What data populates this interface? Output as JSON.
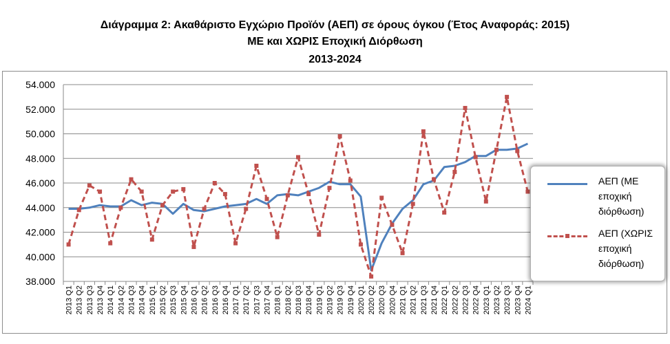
{
  "title_lines": [
    "Διάγραμμα 2: Ακαθάριστο Εγχώριο Προϊόν (ΑΕΠ) σε όρους όγκου (Έτος Αναφοράς: 2015)",
    "ΜΕ και ΧΩΡΙΣ Εποχική Διόρθωση",
    "2013-2024"
  ],
  "chart_data": {
    "type": "line",
    "title": "Διάγραμμα 2: Ακαθάριστο Εγχώριο Προϊόν (ΑΕΠ) σε όρους όγκου (Έτος Αναφοράς: 2015) ΜΕ και ΧΩΡΙΣ Εποχική Διόρθωση 2013-2024",
    "xlabel": "",
    "ylabel": "",
    "ylim": [
      38000,
      54000
    ],
    "y_ticks": [
      38000,
      40000,
      42000,
      44000,
      46000,
      48000,
      50000,
      52000,
      54000
    ],
    "y_tick_labels": [
      "38.000",
      "40.000",
      "42.000",
      "44.000",
      "46.000",
      "48.000",
      "50.000",
      "52.000",
      "54.000"
    ],
    "grid": true,
    "legend_position": "right",
    "categories": [
      "2013 Q1",
      "2013 Q2",
      "2013 Q3",
      "2013 Q4",
      "2014 Q1",
      "2014 Q2",
      "2014 Q3",
      "2014 Q4",
      "2015 Q1",
      "2015 Q2",
      "2015 Q3",
      "2015 Q4",
      "2016 Q1",
      "2016 Q2",
      "2016 Q3",
      "2016 Q4",
      "2017 Q1",
      "2017 Q2",
      "2017 Q3",
      "2017 Q4",
      "2018 Q1",
      "2018 Q2",
      "2018 Q3",
      "2018 Q4",
      "2019 Q1",
      "2019 Q2",
      "2019 Q3",
      "2019 Q4",
      "2020 Q1",
      "2020 Q2",
      "2020 Q3",
      "2020 Q4",
      "2021 Q1",
      "2021 Q2",
      "2021 Q3",
      "2021 Q4",
      "2022 Q1",
      "2022 Q2",
      "2022 Q3",
      "2022 Q4",
      "2023 Q1",
      "2023 Q2",
      "2023 Q3",
      "2023 Q4",
      "2024 Q1"
    ],
    "series": [
      {
        "name": "ΑΕΠ (ΜΕ εποχική διόρθωση)",
        "color": "#4f81bd",
        "style": "solid",
        "values": [
          43900,
          43900,
          44000,
          44200,
          44100,
          44100,
          44600,
          44200,
          44400,
          44300,
          43500,
          44300,
          43800,
          43700,
          43900,
          44100,
          44200,
          44300,
          44700,
          44300,
          45000,
          45100,
          45000,
          45300,
          45600,
          46100,
          45900,
          45900,
          44900,
          38900,
          41100,
          42700,
          43900,
          44600,
          45900,
          46200,
          47300,
          47400,
          47700,
          48200,
          48200,
          48700,
          48700,
          48800,
          49200
        ]
      },
      {
        "name": "ΑΕΠ (ΧΩΡΙΣ εποχική διόρθωση)",
        "color": "#c0504d",
        "style": "dashed",
        "values": [
          41000,
          43800,
          45800,
          45300,
          41100,
          44000,
          46300,
          45300,
          41400,
          44200,
          45300,
          45500,
          40800,
          43900,
          46000,
          45100,
          41100,
          43900,
          47400,
          44700,
          41600,
          45000,
          48100,
          45100,
          41800,
          45600,
          49800,
          46200,
          41000,
          38400,
          44800,
          42600,
          40300,
          44300,
          50200,
          46300,
          43600,
          46900,
          52100,
          48100,
          44500,
          48700,
          53000,
          48600,
          45300
        ]
      }
    ]
  },
  "legend": {
    "items": [
      {
        "lines": [
          "ΑΕΠ  (ΜΕ",
          "εποχική",
          "διόρθωση)"
        ]
      },
      {
        "lines": [
          "ΑΕΠ  (ΧΩΡΙΣ",
          "εποχική",
          "διόρθωση)"
        ]
      }
    ]
  }
}
